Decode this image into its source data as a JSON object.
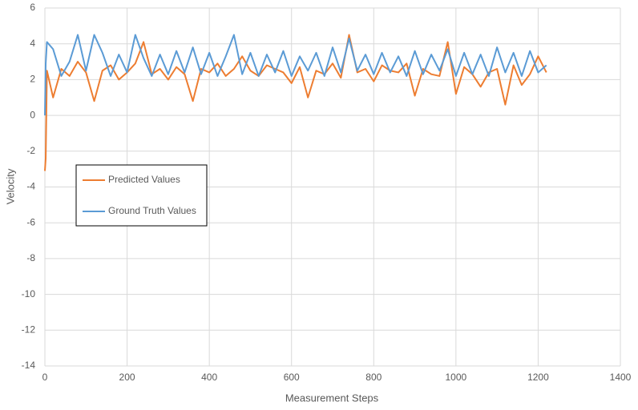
{
  "chart_data": {
    "type": "line",
    "x_label": "Measurement Steps",
    "y_label": "Velocity",
    "x": [
      0,
      2,
      5,
      20,
      40,
      60,
      80,
      100,
      120,
      140,
      160,
      180,
      200,
      220,
      240,
      260,
      280,
      300,
      320,
      340,
      360,
      380,
      400,
      420,
      440,
      460,
      480,
      500,
      520,
      540,
      560,
      580,
      600,
      620,
      640,
      660,
      680,
      700,
      720,
      740,
      760,
      780,
      800,
      820,
      840,
      860,
      880,
      900,
      920,
      940,
      960,
      980,
      1000,
      1020,
      1040,
      1060,
      1080,
      1100,
      1120,
      1140,
      1160,
      1180,
      1200,
      1220
    ],
    "series": [
      {
        "name": "Predicted Values",
        "color": "#ED7D31",
        "values": [
          -3.1,
          -2.4,
          2.5,
          1.0,
          2.6,
          2.2,
          3.0,
          2.4,
          0.8,
          2.5,
          2.8,
          2.0,
          2.4,
          2.9,
          4.1,
          2.3,
          2.6,
          2.0,
          2.7,
          2.3,
          0.8,
          2.6,
          2.4,
          2.9,
          2.2,
          2.6,
          3.3,
          2.5,
          2.2,
          2.8,
          2.6,
          2.4,
          1.8,
          2.7,
          1.0,
          2.5,
          2.3,
          2.9,
          2.1,
          4.5,
          2.4,
          2.6,
          1.9,
          2.8,
          2.5,
          2.4,
          2.9,
          1.1,
          2.6,
          2.3,
          2.2,
          4.1,
          1.2,
          2.7,
          2.3,
          1.6,
          2.4,
          2.6,
          0.6,
          2.8,
          1.7,
          2.3,
          3.3,
          2.4
        ]
      },
      {
        "name": "Ground Truth Values",
        "color": "#5B9BD5",
        "values": [
          0.0,
          2.9,
          4.1,
          3.7,
          2.2,
          3.0,
          4.5,
          2.5,
          4.5,
          3.5,
          2.2,
          3.4,
          2.4,
          4.5,
          3.2,
          2.2,
          3.4,
          2.3,
          3.6,
          2.4,
          3.8,
          2.3,
          3.5,
          2.2,
          3.3,
          4.5,
          2.3,
          3.5,
          2.2,
          3.4,
          2.4,
          3.6,
          2.2,
          3.3,
          2.5,
          3.5,
          2.2,
          3.8,
          2.4,
          4.3,
          2.5,
          3.4,
          2.3,
          3.5,
          2.4,
          3.3,
          2.2,
          3.6,
          2.3,
          3.4,
          2.5,
          3.7,
          2.2,
          3.5,
          2.3,
          3.4,
          2.2,
          3.8,
          2.4,
          3.5,
          2.2,
          3.6,
          2.4,
          2.8
        ]
      }
    ],
    "xlim": [
      0,
      1400
    ],
    "xticks": [
      0,
      200,
      400,
      600,
      800,
      1000,
      1200,
      1400
    ],
    "ylim": [
      -14,
      6
    ],
    "yticks": [
      -14,
      -12,
      -10,
      -8,
      -6,
      -4,
      -2,
      0,
      2,
      4,
      6
    ],
    "grid": true,
    "legend": "center left"
  }
}
